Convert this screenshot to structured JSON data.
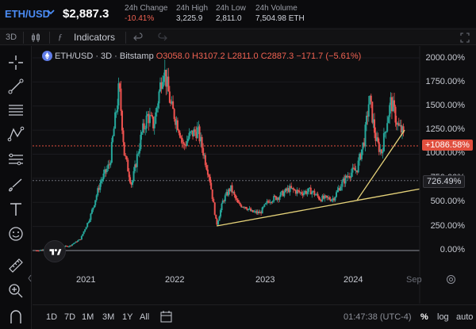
{
  "ticker": {
    "symbol": "ETH/USD",
    "price": "$2,887.3",
    "stats": [
      {
        "label": "24h Change",
        "value": "-10.41%",
        "tone": "neg"
      },
      {
        "label": "24h High",
        "value": "3,225.9",
        "tone": ""
      },
      {
        "label": "24h Low",
        "value": "2,811.0",
        "tone": ""
      },
      {
        "label": "24h Volume",
        "value": "7,504.98 ETH",
        "tone": ""
      }
    ]
  },
  "toolbar": {
    "interval": "3D",
    "indicators_label": "Indicators"
  },
  "legend": {
    "pair": "ETH/USD · 3D · Bitstamp",
    "open": "O3058.0",
    "high": "H3107.2",
    "low": "L2811.0",
    "close": "C2887.3",
    "change": "−171.7 (−5.61%)"
  },
  "price_axis": {
    "labels": [
      "2000.00%",
      "1750.00%",
      "1500.00%",
      "1250.00%",
      "1000.00%",
      "750.00%",
      "500.00%",
      "250.00%",
      "0.00%"
    ],
    "current_tag": "+1086.58%",
    "level_tag": "726.49%"
  },
  "time_axis": {
    "labels": [
      "2021",
      "2022",
      "2023",
      "2024"
    ],
    "future_label": "Sep"
  },
  "ranges": [
    "1D",
    "7D",
    "1M",
    "3M",
    "1Y",
    "All"
  ],
  "status": {
    "clock": "01:47:38 (UTC-4)",
    "percent": "%",
    "log": "log",
    "auto": "auto"
  },
  "colors": {
    "up": "#26a69a",
    "down": "#ef5350",
    "accent": "#4b8cf5",
    "trendline": "#e6d37a",
    "current_price_line": "#e04f3e"
  },
  "icons": [
    "crosshair-icon",
    "trendline-icon",
    "horizontal-lines-icon",
    "pattern-icon",
    "fib-icon",
    "brush-icon",
    "text-icon",
    "emoji-icon",
    "ruler-icon",
    "zoom-in-icon",
    "magnet-icon",
    "calendar-range-icon",
    "reset-icon",
    "tradingview-logo",
    "eth-icon"
  ],
  "chart_data": {
    "type": "candlestick",
    "symbol": "ETH/USD",
    "interval": "3D",
    "exchange": "Bitstamp",
    "scale": "percent",
    "ylim": [
      -20,
      2080
    ],
    "x_ticks": [
      "2021",
      "2022",
      "2023",
      "2024",
      "Sep"
    ],
    "x_range": [
      "2020-06",
      "2024-09"
    ],
    "y_ticks_pct": [
      0,
      250,
      500,
      750,
      1000,
      1250,
      1500,
      1750,
      2000
    ],
    "series": [
      {
        "name": "ETH/USD",
        "points_pct": [
          [
            "2020-06-01",
            0
          ],
          [
            "2020-07-15",
            15
          ],
          [
            "2020-09-01",
            40
          ],
          [
            "2020-10-15",
            45
          ],
          [
            "2020-12-01",
            120
          ],
          [
            "2021-01-10",
            350
          ],
          [
            "2021-02-20",
            700
          ],
          [
            "2021-04-01",
            900
          ],
          [
            "2021-05-10",
            1700
          ],
          [
            "2021-06-01",
            1000
          ],
          [
            "2021-07-01",
            680
          ],
          [
            "2021-08-10",
            1200
          ],
          [
            "2021-09-05",
            1400
          ],
          [
            "2021-10-01",
            1300
          ],
          [
            "2021-11-10",
            1920
          ],
          [
            "2021-12-10",
            1500
          ],
          [
            "2022-01-10",
            1300
          ],
          [
            "2022-02-01",
            1080
          ],
          [
            "2022-03-01",
            1200
          ],
          [
            "2022-04-01",
            1250
          ],
          [
            "2022-05-01",
            950
          ],
          [
            "2022-05-20",
            760
          ],
          [
            "2022-06-18",
            260
          ],
          [
            "2022-07-15",
            520
          ],
          [
            "2022-08-15",
            650
          ],
          [
            "2022-09-15",
            480
          ],
          [
            "2022-10-15",
            460
          ],
          [
            "2022-11-10",
            400
          ],
          [
            "2022-12-15",
            390
          ],
          [
            "2023-01-20",
            520
          ],
          [
            "2023-03-01",
            560
          ],
          [
            "2023-04-15",
            640
          ],
          [
            "2023-06-01",
            600
          ],
          [
            "2023-07-15",
            620
          ],
          [
            "2023-08-20",
            540
          ],
          [
            "2023-10-15",
            540
          ],
          [
            "2023-11-15",
            680
          ],
          [
            "2023-12-20",
            800
          ],
          [
            "2024-01-20",
            840
          ],
          [
            "2024-02-20",
            1150
          ],
          [
            "2024-03-12",
            1580
          ],
          [
            "2024-04-10",
            1130
          ],
          [
            "2024-05-01",
            1020
          ],
          [
            "2024-05-25",
            1360
          ],
          [
            "2024-06-10",
            1550
          ],
          [
            "2024-07-10",
            1280
          ],
          [
            "2024-07-30",
            1220
          ],
          [
            "2024-08-05",
            1087
          ]
        ]
      }
    ],
    "lines": [
      {
        "type": "trendline",
        "from": [
          "2022-06-18",
          255
        ],
        "to": [
          "2024-01-20",
          520
        ]
      },
      {
        "type": "trendline",
        "from": [
          "2024-01-20",
          520
        ],
        "to": [
          "2024-08-05",
          1250
        ]
      },
      {
        "type": "horizontal",
        "value": 1086.58
      },
      {
        "type": "horizontal",
        "value": 726.49
      }
    ]
  }
}
